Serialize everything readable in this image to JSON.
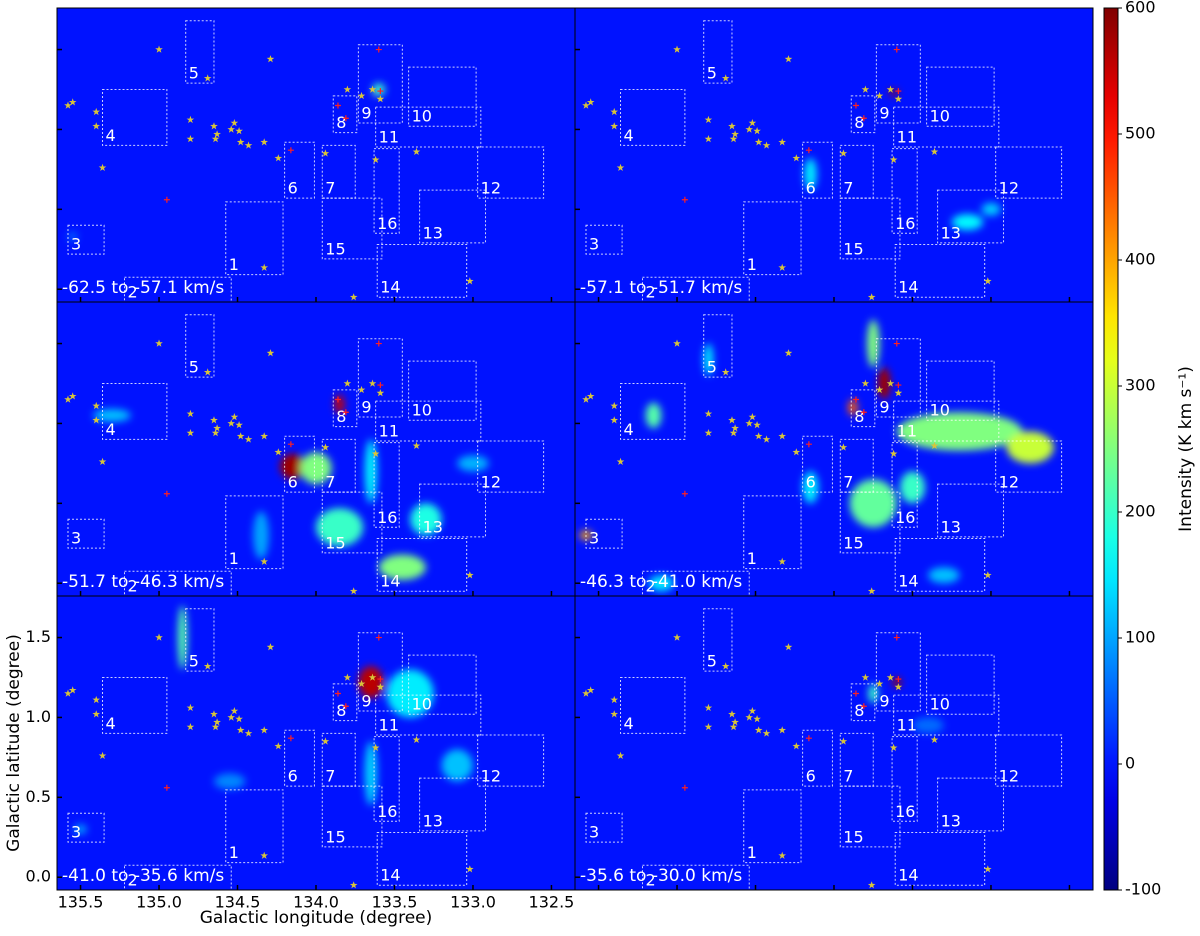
{
  "chart_data": {
    "type": "channel-map",
    "xlabel": "Galactic longitude (degree)",
    "ylabel": "Galactic latitude (degree)",
    "xlim": [
      135.65,
      132.35
    ],
    "ylim": [
      -0.08,
      1.76
    ],
    "xticks": [
      135.5,
      {
        "value": 135,
        "label": "135.0"
      },
      134.5,
      {
        "value": 134,
        "label": "134.0"
      },
      133.5,
      {
        "value": 133,
        "label": "133.0"
      },
      132.5
    ],
    "yticks": [
      {
        "value": 0,
        "label": "0.0"
      },
      0.5,
      {
        "value": 1,
        "label": "1.0"
      },
      1.5
    ],
    "colorbar": {
      "label": "Intensity (K km s⁻¹)",
      "clim": [
        -100,
        600
      ],
      "ticks": [
        -100,
        0,
        100,
        200,
        300,
        400,
        500,
        600
      ],
      "colormap": "jet"
    },
    "regions": [
      {
        "label": "1",
        "l": [
          134.575,
          134.21
        ],
        "b": [
          0.547,
          0.091
        ]
      },
      {
        "label": "2",
        "l": [
          135.22,
          134.54
        ],
        "b": [
          0.075,
          -0.08
        ]
      },
      {
        "label": "3",
        "l": [
          135.58,
          135.35
        ],
        "b": [
          0.4,
          0.22
        ]
      },
      {
        "label": "4",
        "l": [
          135.36,
          134.95
        ],
        "b": [
          1.25,
          0.9
        ]
      },
      {
        "label": "5",
        "l": [
          134.83,
          134.65
        ],
        "b": [
          1.68,
          1.29
        ]
      },
      {
        "label": "6",
        "l": [
          134.2,
          134.01
        ],
        "b": [
          0.92,
          0.57
        ]
      },
      {
        "label": "7",
        "l": [
          133.96,
          133.75
        ],
        "b": [
          0.9,
          0.57
        ]
      },
      {
        "label": "8",
        "l": [
          133.89,
          133.74
        ],
        "b": [
          1.21,
          0.98
        ]
      },
      {
        "label": "9",
        "l": [
          133.73,
          133.45
        ],
        "b": [
          1.53,
          1.04
        ]
      },
      {
        "label": "10",
        "l": [
          133.41,
          132.98
        ],
        "b": [
          1.39,
          1.02
        ]
      },
      {
        "label": "11",
        "l": [
          133.62,
          132.95
        ],
        "b": [
          1.14,
          0.89
        ]
      },
      {
        "label": "12",
        "l": [
          132.97,
          132.55
        ],
        "b": [
          0.89,
          0.57
        ]
      },
      {
        "label": "13",
        "l": [
          133.34,
          132.92
        ],
        "b": [
          0.62,
          0.29
        ]
      },
      {
        "label": "14",
        "l": [
          133.61,
          133.04
        ],
        "b": [
          0.28,
          -0.05
        ]
      },
      {
        "label": "15",
        "l": [
          133.96,
          133.58
        ],
        "b": [
          0.57,
          0.19
        ]
      },
      {
        "label": "16",
        "l": [
          133.63,
          133.47
        ],
        "b": [
          0.88,
          0.35
        ]
      }
    ],
    "stars": {
      "color": "#d8c43a",
      "l": [
        135.0,
        134.69,
        134.29,
        135.58,
        135.55,
        135.4,
        135.4,
        135.36,
        134.8,
        134.8,
        134.65,
        134.63,
        134.54,
        134.64,
        134.52,
        134.49,
        134.48,
        134.43,
        134.33,
        134.24,
        133.94,
        133.8,
        133.71,
        133.64,
        133.59,
        133.62,
        133.36,
        134.33,
        133.76,
        133.02
      ],
      "b": [
        1.5,
        1.32,
        1.44,
        1.15,
        1.17,
        1.11,
        1.02,
        0.76,
        1.06,
        0.94,
        1.02,
        0.97,
        1.0,
        0.94,
        1.04,
        0.99,
        0.92,
        0.9,
        0.92,
        0.82,
        0.85,
        1.25,
        1.21,
        1.25,
        1.19,
        0.81,
        0.86,
        0.135,
        -0.05,
        0.05
      ]
    },
    "plus": {
      "color": "#ff2020",
      "l": [
        133.6,
        133.86,
        133.81,
        133.59,
        134.16,
        134.95
      ],
      "b": [
        1.5,
        1.15,
        1.07,
        1.24,
        0.87,
        0.56
      ]
    },
    "panels": [
      {
        "label": "-62.5 to -57.1 km/s",
        "clumps": {
          "l": [
            133.62,
            133.6,
            135.55
          ],
          "b": [
            1.23,
            1.25,
            0.33
          ],
          "rl": [
            0.02,
            0.04,
            0.03
          ],
          "rb": [
            0.02,
            0.04,
            0.03
          ],
          "values": [
            550,
            200,
            60
          ]
        }
      },
      {
        "label": "-57.1 to -51.7 km/s",
        "clumps": {
          "l": [
            133.62,
            134.15,
            133.15,
            133.0
          ],
          "b": [
            1.23,
            0.72,
            0.42,
            0.5
          ],
          "rl": [
            0.03,
            0.04,
            0.1,
            0.06
          ],
          "rb": [
            0.02,
            0.1,
            0.05,
            0.04
          ],
          "values": [
            580,
            150,
            160,
            130
          ]
        }
      },
      {
        "label": "-51.7 to -46.3 km/s",
        "clumps": {
          "l": [
            134.15,
            134.0,
            133.85,
            133.85,
            133.45,
            133.3,
            135.3,
            133.65,
            134.35,
            133.0
          ],
          "b": [
            0.73,
            0.72,
            1.12,
            0.35,
            0.1,
            0.4,
            1.05,
            0.7,
            0.3,
            0.75
          ],
          "rl": [
            0.08,
            0.1,
            0.03,
            0.15,
            0.15,
            0.1,
            0.12,
            0.04,
            0.05,
            0.1
          ],
          "rb": [
            0.08,
            0.1,
            0.06,
            0.12,
            0.08,
            0.1,
            0.04,
            0.2,
            0.15,
            0.05
          ],
          "values": [
            580,
            250,
            550,
            200,
            250,
            180,
            120,
            150,
            100,
            110
          ]
        }
      },
      {
        "label": "-46.3 to -41.0 km/s",
        "clumps": {
          "l": [
            133.68,
            133.88,
            133.75,
            133.2,
            132.75,
            135.15,
            135.58,
            133.75,
            133.5,
            134.8,
            133.3,
            135.1,
            134.15
          ],
          "b": [
            1.25,
            1.1,
            1.5,
            0.95,
            0.85,
            1.05,
            0.3,
            0.5,
            0.6,
            1.4,
            0.05,
            0.0,
            0.6
          ],
          "rl": [
            0.04,
            0.03,
            0.04,
            0.4,
            0.15,
            0.05,
            0.04,
            0.15,
            0.08,
            0.03,
            0.1,
            0.08,
            0.05
          ],
          "rb": [
            0.1,
            0.05,
            0.15,
            0.12,
            0.1,
            0.08,
            0.03,
            0.15,
            0.1,
            0.1,
            0.05,
            0.05,
            0.1
          ],
          "values": [
            580,
            450,
            250,
            250,
            300,
            220,
            400,
            230,
            200,
            150,
            120,
            150,
            150
          ]
        }
      },
      {
        "label": "-41.0 to -35.6 km/s",
        "clumps": {
          "l": [
            133.65,
            134.85,
            133.4,
            133.1,
            133.65,
            135.5,
            134.55
          ],
          "b": [
            1.22,
            1.5,
            1.15,
            0.7,
            0.65,
            0.3,
            0.6
          ],
          "rl": [
            0.08,
            0.03,
            0.15,
            0.1,
            0.04,
            0.04,
            0.1
          ],
          "rb": [
            0.1,
            0.2,
            0.15,
            0.1,
            0.2,
            0.03,
            0.05
          ],
          "values": [
            560,
            220,
            150,
            120,
            130,
            100,
            80
          ]
        }
      },
      {
        "label": "-35.6 to -30.0 km/s",
        "clumps": {
          "l": [
            133.6,
            133.75,
            133.4
          ],
          "b": [
            1.22,
            1.15,
            0.95
          ],
          "rl": [
            0.03,
            0.03,
            0.1
          ],
          "rb": [
            0.03,
            0.06,
            0.05
          ],
          "values": [
            580,
            200,
            60
          ]
        }
      }
    ]
  }
}
